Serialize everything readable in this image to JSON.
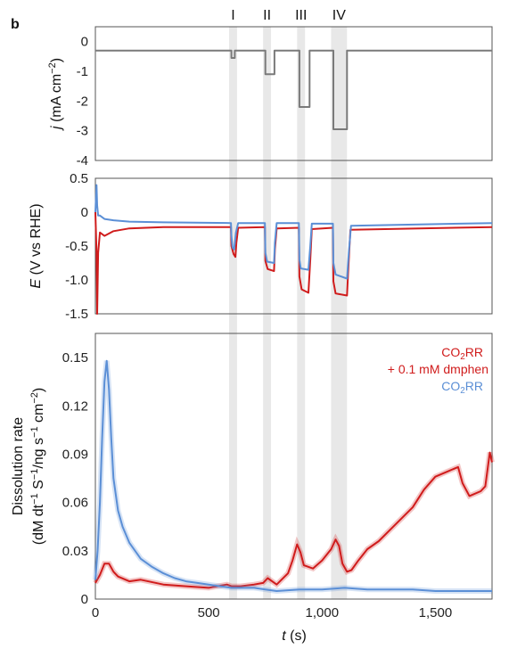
{
  "panel_label": "b",
  "chart_data": [
    {
      "type": "line",
      "panel": "top",
      "ylabel_j": "j",
      "ylabel_rest": " (mA cm",
      "ylabel_sup": "−2",
      "ylabel_end": ")",
      "xlim": [
        0,
        1750
      ],
      "ylim": [
        -4,
        0.5
      ],
      "yticks": [
        "0",
        "-1",
        "-2",
        "-3",
        "-4"
      ],
      "ytick_values": [
        0,
        -1,
        -2,
        -3,
        -4
      ],
      "shaded_regions": [
        {
          "label": "I",
          "x": [
            590,
            625
          ]
        },
        {
          "label": "II",
          "x": [
            740,
            775
          ]
        },
        {
          "label": "III",
          "x": [
            890,
            925
          ]
        },
        {
          "label": "IV",
          "x": [
            1040,
            1110
          ]
        }
      ],
      "series": [
        {
          "color": "#7a7a7a",
          "x": [
            0,
            600,
            600,
            615,
            615,
            750,
            750,
            790,
            790,
            900,
            900,
            945,
            945,
            1050,
            1050,
            1110,
            1110,
            1750
          ],
          "y": [
            -0.3,
            -0.3,
            -0.55,
            -0.55,
            -0.3,
            -0.3,
            -1.1,
            -1.1,
            -0.3,
            -0.3,
            -2.2,
            -2.2,
            -0.3,
            -0.3,
            -2.95,
            -2.95,
            -0.3,
            -0.3
          ]
        }
      ]
    },
    {
      "type": "line",
      "panel": "middle",
      "ylabel_e": "E",
      "ylabel_rest": " (V vs RHE)",
      "xlim": [
        0,
        1750
      ],
      "ylim": [
        -1.5,
        0.5
      ],
      "yticks": [
        "0.5",
        "0",
        "-0.5",
        "-1.0",
        "-1.5"
      ],
      "ytick_values": [
        0.5,
        0,
        -0.5,
        -1.0,
        -1.5
      ],
      "series": [
        {
          "color": "#d01c1c",
          "x": [
            0,
            5,
            8,
            12,
            20,
            40,
            80,
            150,
            300,
            598,
            600,
            610,
            618,
            622,
            630,
            748,
            750,
            760,
            788,
            792,
            800,
            898,
            900,
            910,
            940,
            948,
            955,
            1048,
            1050,
            1060,
            1110,
            1115,
            1125,
            1750
          ],
          "y": [
            0.0,
            -0.6,
            -1.5,
            -0.6,
            -0.3,
            -0.35,
            -0.28,
            -0.24,
            -0.22,
            -0.22,
            -0.5,
            -0.62,
            -0.66,
            -0.45,
            -0.23,
            -0.22,
            -0.72,
            -0.84,
            -0.87,
            -0.55,
            -0.24,
            -0.23,
            -0.95,
            -1.14,
            -1.19,
            -0.7,
            -0.25,
            -0.23,
            -1.02,
            -1.2,
            -1.23,
            -0.9,
            -0.26,
            -0.22
          ]
        },
        {
          "color": "#5b8fd6",
          "x": [
            0,
            5,
            8,
            12,
            20,
            40,
            80,
            150,
            300,
            598,
            600,
            605,
            612,
            620,
            630,
            748,
            750,
            758,
            788,
            792,
            800,
            898,
            900,
            906,
            940,
            948,
            955,
            1048,
            1050,
            1060,
            1110,
            1118,
            1128,
            1750
          ],
          "y": [
            0.0,
            0.4,
            0.1,
            -0.05,
            -0.05,
            -0.1,
            -0.12,
            -0.14,
            -0.15,
            -0.16,
            -0.35,
            -0.52,
            -0.55,
            -0.3,
            -0.16,
            -0.16,
            -0.6,
            -0.73,
            -0.75,
            -0.45,
            -0.16,
            -0.16,
            -0.7,
            -0.83,
            -0.85,
            -0.5,
            -0.17,
            -0.17,
            -0.75,
            -0.92,
            -0.98,
            -0.6,
            -0.2,
            -0.16
          ]
        }
      ]
    },
    {
      "type": "line",
      "panel": "bottom",
      "ylabel_line1": "Dissolution rate",
      "ylabel_line2": "(dM dt",
      "ylabel_sup1": "−1",
      "ylabel_mid1": " S",
      "ylabel_sup2": "−1",
      "ylabel_mid2": "/ng s",
      "ylabel_sup3": "−1",
      "ylabel_mid3": " cm",
      "ylabel_sup4": "−2",
      "ylabel_end": ")",
      "xlabel_t": "t",
      "xlabel_rest": " (s)",
      "xlim": [
        0,
        1750
      ],
      "ylim": [
        0,
        0.165
      ],
      "xticks": [
        "0",
        "500",
        "1,000",
        "1,500"
      ],
      "xtick_values": [
        0,
        500,
        1000,
        1500
      ],
      "yticks": [
        "0",
        "0.03",
        "0.06",
        "0.09",
        "0.12",
        "0.15"
      ],
      "ytick_values": [
        0,
        0.03,
        0.06,
        0.09,
        0.12,
        0.15
      ],
      "legend_placement": "top-right",
      "legend": [
        {
          "label_pre": "CO",
          "label_sub": "2",
          "label_post": "RR",
          "color": "#d01c1c"
        },
        {
          "label_pre": "+ 0.1 mM dmphen",
          "label_sub": "",
          "label_post": "",
          "color": "#d01c1c"
        },
        {
          "label_pre": "CO",
          "label_sub": "2",
          "label_post": "RR",
          "color": "#5b8fd6"
        }
      ],
      "series": [
        {
          "color": "#d01c1c",
          "x": [
            0,
            20,
            40,
            60,
            80,
            100,
            150,
            200,
            300,
            400,
            500,
            580,
            600,
            640,
            700,
            740,
            760,
            800,
            850,
            870,
            890,
            905,
            920,
            960,
            1000,
            1040,
            1060,
            1075,
            1090,
            1110,
            1130,
            1160,
            1200,
            1250,
            1300,
            1350,
            1400,
            1450,
            1500,
            1550,
            1600,
            1620,
            1650,
            1700,
            1720,
            1740,
            1750
          ],
          "y": [
            0.01,
            0.015,
            0.022,
            0.022,
            0.017,
            0.014,
            0.011,
            0.012,
            0.009,
            0.008,
            0.007,
            0.009,
            0.008,
            0.008,
            0.009,
            0.01,
            0.013,
            0.009,
            0.016,
            0.024,
            0.034,
            0.029,
            0.021,
            0.019,
            0.024,
            0.031,
            0.037,
            0.033,
            0.022,
            0.017,
            0.018,
            0.024,
            0.031,
            0.036,
            0.043,
            0.05,
            0.057,
            0.068,
            0.076,
            0.079,
            0.082,
            0.072,
            0.064,
            0.067,
            0.07,
            0.091,
            0.085
          ]
        },
        {
          "color": "#5b8fd6",
          "x": [
            0,
            10,
            20,
            30,
            40,
            50,
            60,
            70,
            80,
            100,
            120,
            150,
            200,
            250,
            300,
            350,
            400,
            450,
            500,
            550,
            600,
            650,
            700,
            750,
            800,
            900,
            1000,
            1100,
            1200,
            1300,
            1400,
            1500,
            1600,
            1700,
            1750
          ],
          "y": [
            0.012,
            0.03,
            0.06,
            0.1,
            0.135,
            0.148,
            0.13,
            0.1,
            0.075,
            0.055,
            0.045,
            0.035,
            0.025,
            0.02,
            0.016,
            0.013,
            0.011,
            0.01,
            0.009,
            0.008,
            0.007,
            0.007,
            0.007,
            0.006,
            0.005,
            0.006,
            0.006,
            0.007,
            0.006,
            0.006,
            0.006,
            0.005,
            0.005,
            0.005,
            0.005
          ]
        }
      ]
    }
  ]
}
